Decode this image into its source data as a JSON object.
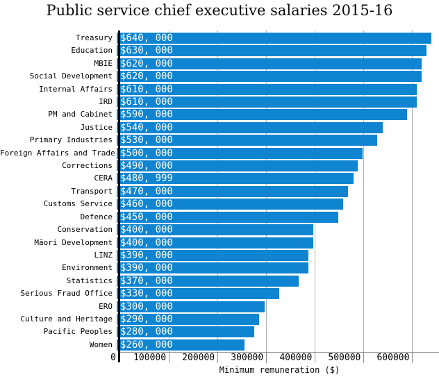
{
  "chart_data": {
    "type": "bar",
    "orientation": "horizontal",
    "title": "Public service chief executive salaries 2015-16",
    "xlabel": "Minimum remuneration ($)",
    "xlim": [
      0,
      655000
    ],
    "grid": true,
    "legend": null,
    "x_ticks": [
      {
        "value": 0,
        "label": "0"
      },
      {
        "value": 100000,
        "label": "100000"
      },
      {
        "value": 200000,
        "label": "200000"
      },
      {
        "value": 300000,
        "label": "300000"
      },
      {
        "value": 400000,
        "label": "400000"
      },
      {
        "value": 500000,
        "label": "500000"
      },
      {
        "value": 600000,
        "label": "600000"
      }
    ],
    "categories": [
      "Treasury",
      "Education",
      "MBIE",
      "Social Development",
      "Internal Affairs",
      "IRD",
      "PM and Cabinet",
      "Justice",
      "Primary Industries",
      "Foreign Affairs and Trade",
      "Corrections",
      "CERA",
      "Transport",
      "Customs Service",
      "Defence",
      "Conservation",
      "Māori Development",
      "LINZ",
      "Environment",
      "Statistics",
      "Serious Fraud Office",
      "ERO",
      "Culture and Heritage",
      "Pacific Peoples",
      "Women"
    ],
    "values": [
      640000,
      630000,
      620000,
      620000,
      610000,
      610000,
      590000,
      540000,
      530000,
      500000,
      490000,
      480999,
      470000,
      460000,
      450000,
      400000,
      400000,
      390000,
      390000,
      370000,
      330000,
      300000,
      290000,
      280000,
      260000
    ],
    "bar_value_labels": [
      "$640, 000",
      "$630, 000",
      "$620, 000",
      "$620, 000",
      "$610, 000",
      "$610, 000",
      "$590, 000",
      "$540, 000",
      "$530, 000",
      "$500, 000",
      "$490, 000",
      "$480, 999",
      "$470, 000",
      "$460, 000",
      "$450, 000",
      "$400, 000",
      "$400, 000",
      "$390, 000",
      "$390, 000",
      "$370, 000",
      "$330, 000",
      "$300, 000",
      "$290, 000",
      "$280, 000",
      "$260, 000"
    ],
    "colors": {
      "bar": "#0f85d2",
      "bar_label_text": "#ffffff",
      "grid_line": "#b0b0b0",
      "y_axis_line": "#000000",
      "x_axis_line": "#8c8c8c",
      "text": "#000000",
      "background": "#ffffff"
    }
  }
}
